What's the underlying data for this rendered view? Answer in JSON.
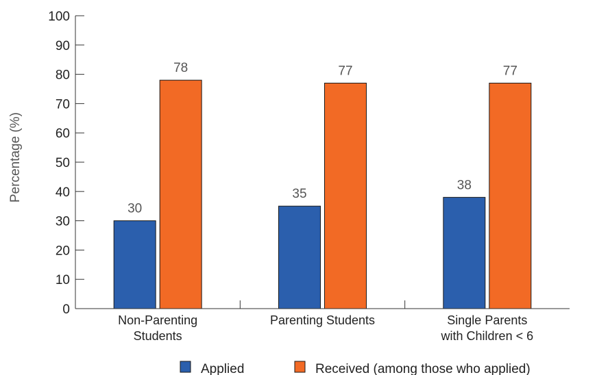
{
  "chart_data": {
    "type": "bar",
    "title": "",
    "xlabel": "",
    "ylabel": "Percentage (%)",
    "ylim": [
      0,
      100
    ],
    "yticks": [
      0,
      10,
      20,
      30,
      40,
      50,
      60,
      70,
      80,
      90,
      100
    ],
    "grid": false,
    "legend_position": "bottom",
    "categories": [
      [
        "Non-Parenting",
        "Students"
      ],
      [
        "Parenting Students"
      ],
      [
        "Single Parents",
        "with Children < 6"
      ]
    ],
    "series": [
      {
        "name": "Applied",
        "color": "#2b5fad",
        "values": [
          30,
          35,
          38
        ]
      },
      {
        "name": "Received (among those who applied)",
        "color": "#f26a25",
        "values": [
          78,
          77,
          77
        ]
      }
    ]
  }
}
